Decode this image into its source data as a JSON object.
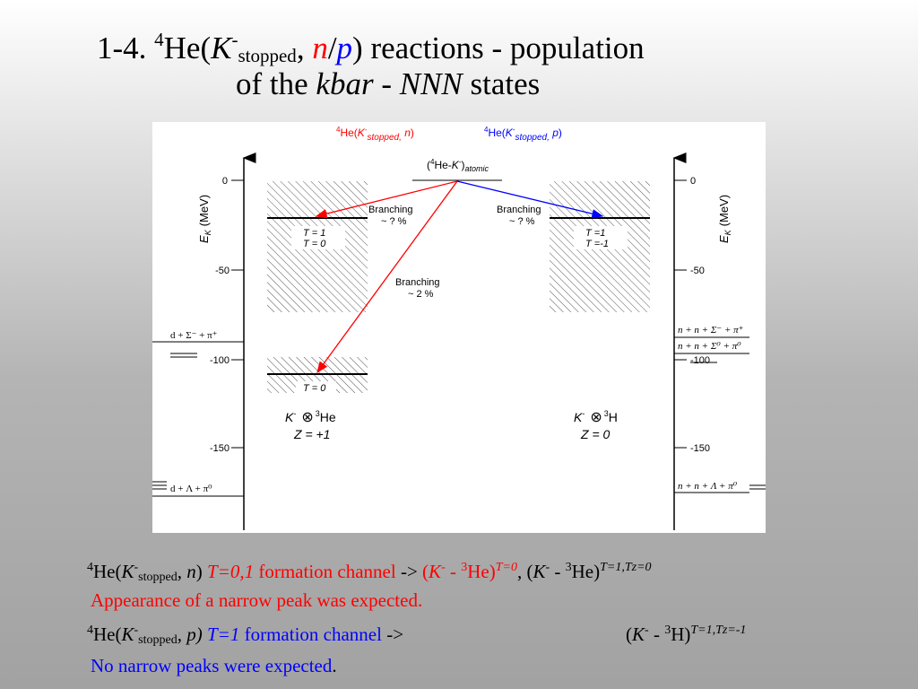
{
  "title": {
    "line1": {
      "prefix": "1-4. ",
      "mass": "4",
      "he": "He(",
      "k": "K",
      "kcharge": "-",
      "stopped": "stopped",
      "comma": ", ",
      "n": "n",
      "slash": "/",
      "p": "p",
      "rest": ") reactions - population"
    },
    "line2": {
      "of_the": "of the ",
      "kbar": "kbar",
      "dash": " - ",
      "nnn": "NNN",
      "states": " states"
    }
  },
  "diagram": {
    "header_left": {
      "mass": "4",
      "text1": "He(",
      "k": "K",
      "charge": "-",
      "sub": "stopped,",
      "n": " n",
      "close": ")"
    },
    "header_right": {
      "mass": "4",
      "text1": "He(",
      "k": "K",
      "charge": "-",
      "sub": "stopped,",
      "p": " p",
      "close": ")"
    },
    "atomic": {
      "open": "(",
      "mass": "4",
      "he": "He-",
      "k": "K",
      "charge": "-",
      "close": ")",
      "sub": "atomic"
    },
    "axis_label_e": "E",
    "axis_label_sub": "K",
    "axis_label_unit": "(MeV)",
    "ticks": [
      "0",
      "-50",
      "-100",
      "-150"
    ],
    "branch_left_1": "Branching",
    "branch_left_2": "~ ? %",
    "branch_right_1": "Branching",
    "branch_right_2": "~ ? %",
    "branch_mid_1": "Branching",
    "branch_mid_2": "~ 2 %",
    "left_state_t": "T  = 1",
    "left_state_tz": "T  = 0",
    "left_state_low": "T  = 0",
    "right_state_t": "T  =1",
    "right_state_tz": "T  =-1",
    "thresh_left_1": "d + Σ⁻ + π⁺",
    "thresh_left_2": "d + Λ + π⁰",
    "thresh_right_1": "n + n + Σ⁻ + π⁺",
    "thresh_right_2": "n + n + Σ⁰ + π⁰",
    "thresh_right_3": "n + n + Λ + π⁰",
    "sys_left": {
      "k": "K",
      "charge": "-",
      "otimes": "⊗",
      "mass": "3",
      "nuc": "He",
      "z": "Z = +1"
    },
    "sys_right": {
      "k": "K",
      "charge": "-",
      "otimes": "⊗",
      "mass": "3",
      "nuc": "H",
      "z": "Z =  0"
    }
  },
  "bottom": {
    "line1": {
      "mass": "4",
      "he": "He(",
      "k": "K",
      "charge": "-",
      "stopped": "stopped",
      "comma": ", ",
      "n": "n",
      "close": ") ",
      "t": "T=0,1",
      "channel": " formation channel",
      "arrow": " -> ",
      "s1_open": " (",
      "s1_k": "K",
      "s1_charge": "-",
      "s1_dash": " - ",
      "s1_mass": "3",
      "s1_he": "He)",
      "s1_sup": "T=0",
      "sep": ", (",
      "s2_k": "K",
      "s2_charge": "-",
      "s2_dash": " - ",
      "s2_mass": "3",
      "s2_he": "He)",
      "s2_sup": "T=1,Tz=0"
    },
    "line2": "Appearance of a narrow peak was expected.",
    "line3": {
      "mass": "4",
      "he": "He(",
      "k": "K",
      "charge": "-",
      "stopped": "stopped",
      "comma": ", ",
      "p": "p)",
      "space": " ",
      "t": "T=1",
      "channel": " formation channel",
      "arrow": " ->",
      "s_open": "(",
      "s_k": "K",
      "s_charge": "-",
      "s_dash": " - ",
      "s_mass": "3",
      "s_h": "H)",
      "s_sup": "T=1,Tz=-1"
    },
    "line4_text": "No narrow peaks were expected",
    "line4_dot": "."
  },
  "colors": {
    "red": "#ff0000",
    "blue": "#0000ff",
    "black": "#000000"
  }
}
